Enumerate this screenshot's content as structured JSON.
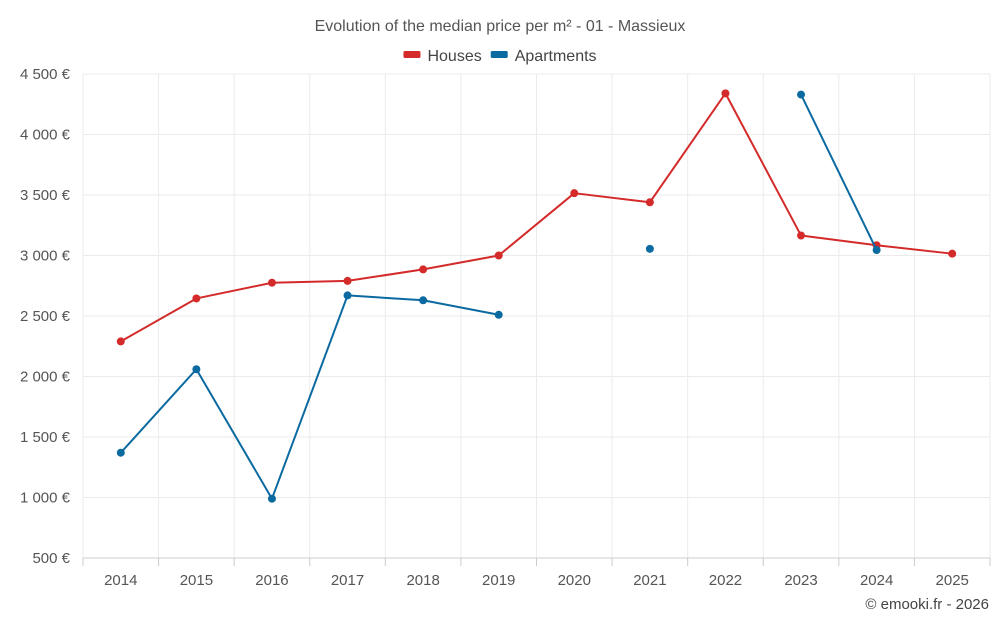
{
  "chart_data": {
    "type": "line",
    "title": "Evolution of the median price per m² - 01 - Massieux",
    "categories": [
      "2014",
      "2015",
      "2016",
      "2017",
      "2018",
      "2019",
      "2020",
      "2021",
      "2022",
      "2023",
      "2024",
      "2025"
    ],
    "ylim": [
      500,
      4500
    ],
    "yticks": [
      500,
      1000,
      1500,
      2000,
      2500,
      3000,
      3500,
      4000,
      4500
    ],
    "ytick_labels": [
      "500 €",
      "1 000 €",
      "1 500 €",
      "2 000 €",
      "2 500 €",
      "3 000 €",
      "3 500 €",
      "4 000 €",
      "4 500 €"
    ],
    "grid": true,
    "legend_position": "top-center",
    "series": [
      {
        "name": "Houses",
        "color": "#d42a2a",
        "values": [
          2290,
          2645,
          2775,
          2790,
          2885,
          3000,
          3515,
          3440,
          4340,
          3165,
          3085,
          3015
        ]
      },
      {
        "name": "Apartments",
        "color": "#0b6aa0",
        "values": [
          1370,
          2060,
          990,
          2670,
          2630,
          2510,
          null,
          3055,
          null,
          4330,
          3045,
          null
        ]
      }
    ]
  },
  "credit": "© emooki.fr - 2026"
}
